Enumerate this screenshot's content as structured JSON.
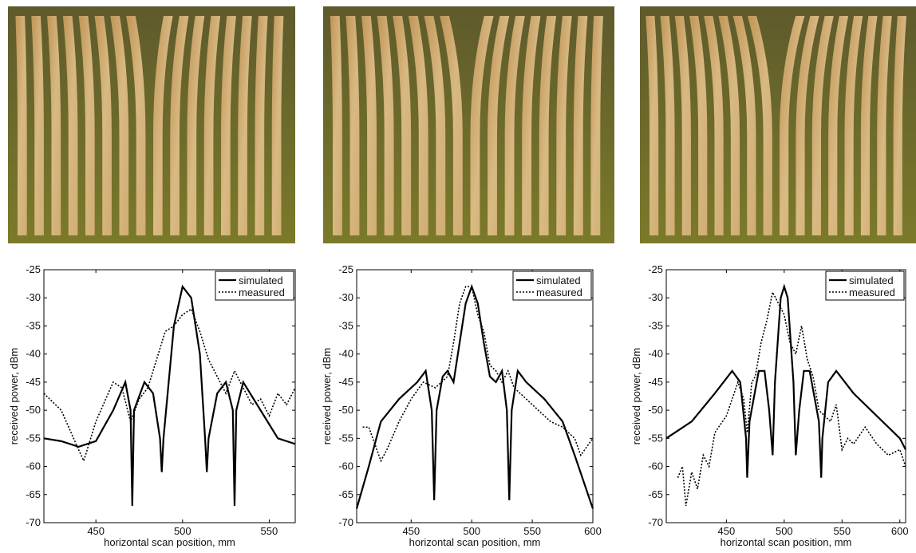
{
  "chart_data": [
    {
      "type": "line",
      "xlabel": "horizontal scan position, mm",
      "ylabel": "received power, dBm",
      "xlim": [
        420,
        565
      ],
      "ylim": [
        -70,
        -25
      ],
      "xticks": [
        450,
        500,
        550
      ],
      "yticks": [
        -70,
        -65,
        -60,
        -55,
        -50,
        -45,
        -40,
        -35,
        -30,
        -25
      ],
      "legend": "upper right",
      "series": [
        {
          "name": "simulated",
          "color": "#000000",
          "line_style": "solid",
          "x": [
            420,
            430,
            440,
            450,
            460,
            467,
            470,
            471,
            472,
            478,
            483,
            487,
            488,
            489,
            495,
            500,
            505,
            510,
            513,
            514,
            515,
            520,
            525,
            529,
            530,
            531,
            535,
            545,
            555,
            565
          ],
          "values": [
            -55,
            -55.5,
            -56.5,
            -55.5,
            -50,
            -45,
            -50,
            -67,
            -50,
            -45,
            -47,
            -55,
            -61,
            -55,
            -35,
            -28,
            -30,
            -40,
            -55,
            -61,
            -55,
            -47,
            -45,
            -50,
            -67,
            -50,
            -45,
            -50,
            -55,
            -56
          ]
        },
        {
          "name": "measured",
          "color": "#000000",
          "line_style": "dotted",
          "x": [
            420,
            430,
            440,
            443,
            450,
            460,
            465,
            470,
            475,
            480,
            485,
            490,
            495,
            500,
            505,
            510,
            515,
            520,
            525,
            530,
            535,
            540,
            545,
            550,
            555,
            560,
            565
          ],
          "values": [
            -47,
            -50,
            -57,
            -59,
            -52,
            -45,
            -46,
            -52,
            -48,
            -46,
            -41,
            -36,
            -35,
            -33,
            -32,
            -36,
            -41,
            -44,
            -47,
            -43,
            -46,
            -49,
            -48,
            -51,
            -47,
            -49,
            -46
          ]
        }
      ]
    },
    {
      "type": "line",
      "xlabel": "horizontal scan position, mm",
      "ylabel": "received power, dBm",
      "xlim": [
        405,
        600
      ],
      "ylim": [
        -70,
        -25
      ],
      "xticks": [
        450,
        500,
        550,
        600
      ],
      "yticks": [
        -70,
        -65,
        -60,
        -55,
        -50,
        -45,
        -40,
        -35,
        -30,
        -25
      ],
      "legend": "upper right",
      "series": [
        {
          "name": "simulated",
          "color": "#000000",
          "line_style": "solid",
          "x": [
            405,
            415,
            425,
            440,
            455,
            462,
            467,
            469,
            471,
            476,
            480,
            485,
            490,
            495,
            500,
            505,
            510,
            515,
            520,
            525,
            529,
            531,
            533,
            538,
            545,
            560,
            575,
            585,
            600
          ],
          "values": [
            -67.5,
            -60,
            -52,
            -48,
            -45,
            -43,
            -50,
            -66,
            -50,
            -44,
            -43,
            -45,
            -38,
            -31,
            -28,
            -31,
            -38,
            -44,
            -45,
            -43,
            -50,
            -66,
            -50,
            -43,
            -45,
            -48,
            -52,
            -58,
            -67.5
          ]
        },
        {
          "name": "measured",
          "color": "#000000",
          "line_style": "dotted",
          "x": [
            410,
            415,
            420,
            425,
            430,
            440,
            450,
            460,
            470,
            480,
            485,
            490,
            495,
            500,
            505,
            510,
            515,
            520,
            525,
            530,
            535,
            545,
            555,
            565,
            575,
            585,
            590,
            600
          ],
          "values": [
            -53,
            -53,
            -56,
            -59,
            -57,
            -52,
            -48,
            -45,
            -46,
            -44,
            -38,
            -31,
            -28,
            -28,
            -33,
            -36,
            -42,
            -43,
            -45,
            -43,
            -46,
            -48,
            -50,
            -52,
            -53,
            -55,
            -58,
            -55
          ]
        }
      ]
    },
    {
      "type": "line",
      "xlabel": "horizontal scan position, mm",
      "ylabel": "received power, dBm",
      "xlim": [
        398,
        605
      ],
      "ylim": [
        -70,
        -25
      ],
      "xticks": [
        450,
        500,
        550,
        600
      ],
      "yticks": [
        -70,
        -65,
        -60,
        -55,
        -50,
        -45,
        -40,
        -35,
        -30,
        -25
      ],
      "legend": "upper right",
      "series": [
        {
          "name": "simulated",
          "color": "#000000",
          "line_style": "solid",
          "x": [
            398,
            420,
            440,
            455,
            462,
            467,
            468,
            470,
            478,
            483,
            487,
            490,
            492,
            497,
            500,
            503,
            508,
            510,
            513,
            517,
            522,
            530,
            532,
            533,
            538,
            545,
            560,
            580,
            600,
            605
          ],
          "values": [
            -55,
            -52,
            -47,
            -43,
            -45,
            -55,
            -62,
            -52,
            -43,
            -43,
            -50,
            -58,
            -45,
            -30,
            -28,
            -30,
            -45,
            -58,
            -50,
            -43,
            -43,
            -52,
            -62,
            -55,
            -45,
            -43,
            -47,
            -51,
            -55,
            -57
          ]
        },
        {
          "name": "measured",
          "color": "#000000",
          "line_style": "dotted",
          "x": [
            408,
            412,
            415,
            420,
            425,
            430,
            435,
            440,
            450,
            460,
            465,
            468,
            472,
            475,
            480,
            485,
            490,
            495,
            500,
            505,
            510,
            515,
            520,
            525,
            530,
            540,
            545,
            550,
            555,
            560,
            570,
            580,
            590,
            600,
            605
          ],
          "values": [
            -62,
            -60,
            -67,
            -61,
            -64,
            -58,
            -60,
            -54,
            -51,
            -45,
            -48,
            -54,
            -45,
            -44,
            -38,
            -34,
            -29,
            -31,
            -33,
            -38,
            -40,
            -35,
            -41,
            -44,
            -50,
            -52,
            -49,
            -57,
            -55,
            -56,
            -53,
            -56,
            -58,
            -57,
            -60
          ]
        }
      ]
    }
  ]
}
